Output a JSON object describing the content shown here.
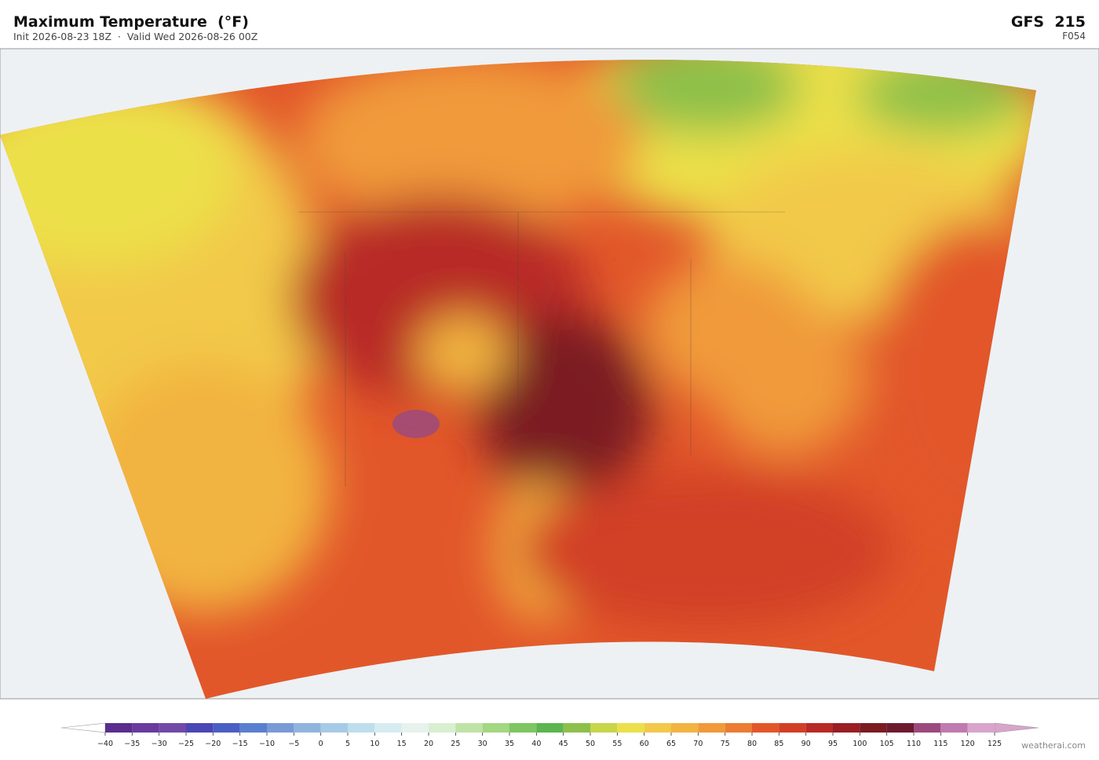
{
  "header": {
    "title": "Maximum Temperature  (°F)",
    "subtitle": "Init 2026-08-23 18Z  ·  Valid Wed 2026-08-26 00Z",
    "model": "GFS  215",
    "forecast_hour": "F054"
  },
  "colorbar": {
    "range": [
      -40,
      125
    ],
    "ticks": [
      {
        "value": -40,
        "label": "−40"
      },
      {
        "value": -35,
        "label": "−35"
      },
      {
        "value": -30,
        "label": "−30"
      },
      {
        "value": -25,
        "label": "−25"
      },
      {
        "value": -20,
        "label": "−20"
      },
      {
        "value": -15,
        "label": "−15"
      },
      {
        "value": -10,
        "label": "−10"
      },
      {
        "value": -5,
        "label": "−5"
      },
      0,
      5,
      10,
      15,
      20,
      25,
      30,
      35,
      40,
      45,
      50,
      55,
      60,
      65,
      70,
      75,
      80,
      85,
      90,
      95,
      100,
      105,
      110,
      115,
      120,
      125
    ],
    "colors": [
      "#5b2d8e",
      "#6a3a9e",
      "#7249a8",
      "#4b46b5",
      "#4a5fc4",
      "#5b7fd0",
      "#7a9ad6",
      "#8fb5de",
      "#a6cbe6",
      "#bfdeed",
      "#d6ecf0",
      "#e6f2ee",
      "#d8efd0",
      "#bfe3a6",
      "#a3d782",
      "#7fc563",
      "#5cb54f",
      "#8dc04a",
      "#c8d64a",
      "#ece04a",
      "#f2c94a",
      "#f2b440",
      "#f09a3a",
      "#ec7c33",
      "#e2572a",
      "#d23f27",
      "#b82a25",
      "#9a1e22",
      "#7c1a22",
      "#6e1a2e",
      "#9c4a7e",
      "#c07ab0",
      "#d8a4cc"
    ],
    "under_color": "#ffffff",
    "over_color": "#d8a4cc"
  },
  "footer": {
    "credit": "weatherai.com"
  }
}
